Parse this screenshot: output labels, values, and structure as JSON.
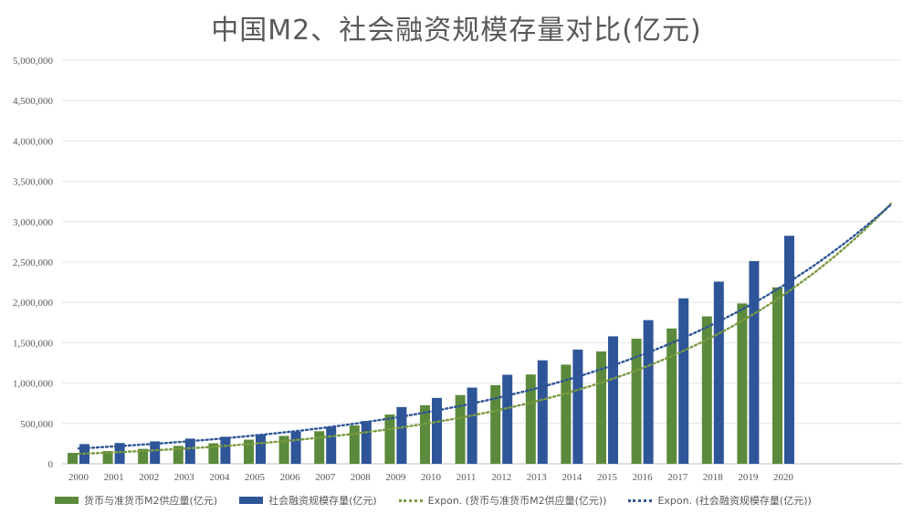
{
  "chart_data": {
    "type": "bar",
    "title": "中国M2、社会融资规模存量对比(亿元)",
    "categories": [
      "2000",
      "2001",
      "2002",
      "2003",
      "2004",
      "2005",
      "2006",
      "2007",
      "2008",
      "2009",
      "2010",
      "2011",
      "2012",
      "2013",
      "2014",
      "2015",
      "2016",
      "2017",
      "2018",
      "2019",
      "2020"
    ],
    "series": [
      {
        "name": "货币与准货币M2供应量(亿元)",
        "color": "#5b8a3c",
        "values": [
          134600,
          158300,
          185000,
          221200,
          254100,
          298800,
          345600,
          403400,
          475200,
          610200,
          725800,
          851600,
          974100,
          1106500,
          1228400,
          1392300,
          1550100,
          1676800,
          1826700,
          1986500,
          2186800
        ]
      },
      {
        "name": "社会融资规模存量(亿元)",
        "color": "#2e5597",
        "values": [
          244000,
          258000,
          278000,
          312000,
          335000,
          365000,
          400000,
          459000,
          530000,
          703000,
          816000,
          944000,
          1103000,
          1282000,
          1415000,
          1579000,
          1780000,
          2050000,
          2257000,
          2512000,
          2825000
        ]
      }
    ],
    "trendlines": [
      {
        "name": "Expon. (货币与准货币M2供应量(亿元))",
        "color": "#7a9a40",
        "a": 123000,
        "r": 1.1522
      },
      {
        "name": "Expon. (社会融资规模存量(亿元))",
        "color": "#2e5597",
        "a": 190000,
        "r": 1.1305
      }
    ],
    "ylim": [
      0,
      5000000
    ],
    "yticks": [
      "0",
      "500,000",
      "1,000,000",
      "1,500,000",
      "2,000,000",
      "2,500,000",
      "3,000,000",
      "3,500,000",
      "4,000,000",
      "4,500,000",
      "5,000,000"
    ],
    "grid": true,
    "legend_position": "bottom"
  }
}
